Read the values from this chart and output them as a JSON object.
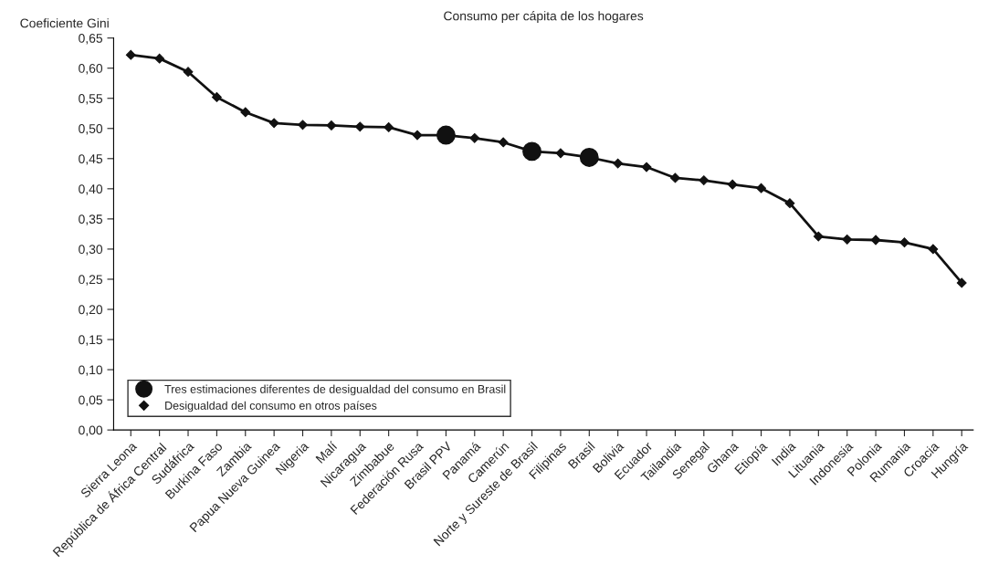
{
  "chart_data": {
    "type": "line",
    "title": "Consumo per cápita de los hogares",
    "ylabel": "Coeficiente Gini",
    "categories": [
      "Sierra Leona",
      "República de África Central",
      "Sudáfrica",
      "Burkina Faso",
      "Zambia",
      "Papua Nueva Guinea",
      "Nigeria",
      "Malí",
      "Nicaragua",
      "Zimbabue",
      "Federación Rusa",
      "Brasil PPV",
      "Panamá",
      "Camerún",
      "Norte y Sureste de Brasil",
      "Filipinas",
      "Brasil",
      "Bolivia",
      "Ecuador",
      "Tailandia",
      "Senegal",
      "Ghana",
      "Etiopía",
      "India",
      "Lituania",
      "Indonesia",
      "Polonia",
      "Rumania",
      "Croacia",
      "Hungría"
    ],
    "series": [
      {
        "name": "Tres estimaciones diferentes de desigualdad del consumo en Brasil",
        "type": "scatter",
        "marker": "circle",
        "color": "#111111",
        "values": [
          null,
          null,
          null,
          null,
          null,
          null,
          null,
          null,
          null,
          null,
          null,
          0.489,
          null,
          null,
          0.462,
          null,
          0.452,
          null,
          null,
          null,
          null,
          null,
          null,
          null,
          null,
          null,
          null,
          null,
          null,
          null
        ]
      },
      {
        "name": "Desigualdad del consumo en otros países",
        "marker": "diamond",
        "color": "#111111",
        "values": [
          0.622,
          0.616,
          0.594,
          0.552,
          0.527,
          0.509,
          0.506,
          0.505,
          0.503,
          0.502,
          0.489,
          0.489,
          0.484,
          0.477,
          0.462,
          0.459,
          0.452,
          0.442,
          0.436,
          0.418,
          0.414,
          0.407,
          0.401,
          0.376,
          0.321,
          0.316,
          0.315,
          0.311,
          0.3,
          0.244
        ]
      }
    ],
    "ylim": [
      0,
      0.65
    ],
    "yticks": [
      {
        "value": 0,
        "label": "0,00"
      },
      {
        "value": 0.05,
        "label": "0,05"
      },
      {
        "value": 0.1,
        "label": "0,10"
      },
      {
        "value": 0.15,
        "label": "0,15"
      },
      {
        "value": 0.2,
        "label": "0,20"
      },
      {
        "value": 0.25,
        "label": "0,25"
      },
      {
        "value": 0.3,
        "label": "0,30"
      },
      {
        "value": 0.35,
        "label": "0,35"
      },
      {
        "value": 0.4,
        "label": "0,40"
      },
      {
        "value": 0.45,
        "label": "0,45"
      },
      {
        "value": 0.5,
        "label": "0,50"
      },
      {
        "value": 0.55,
        "label": "0,55"
      },
      {
        "value": 0.6,
        "label": "0,60"
      },
      {
        "value": 0.65,
        "label": "0,65"
      }
    ],
    "legend": "bottom left"
  }
}
